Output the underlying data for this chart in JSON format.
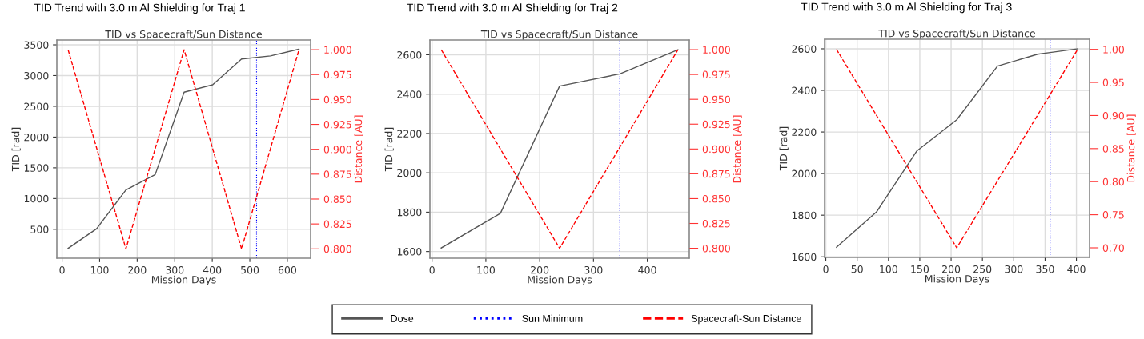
{
  "chart_data": [
    {
      "type": "line",
      "title": "TID Trend with 3.0 m Al Shielding for Traj 1",
      "subtitle": "TID vs Spacecraft/Sun Distance",
      "xlabel": "Mission Days",
      "ylabel": "TID [rad]",
      "y2label": "Distance [AU]",
      "series": [
        {
          "name": "Dose",
          "color": "#555555",
          "line_style": "solid",
          "x": [
            16,
            92,
            170,
            248,
            325,
            401,
            478,
            555,
            631
          ],
          "values": [
            190,
            510,
            1140,
            1390,
            2730,
            2850,
            3270,
            3320,
            3430
          ]
        },
        {
          "name": "Spacecraft-Sun Distance",
          "color": "#ff0000",
          "line_style": "dashed",
          "axis": "y2",
          "x": [
            16,
            170,
            325,
            478,
            631
          ],
          "values": [
            1.0,
            0.8,
            1.0,
            0.8,
            1.0
          ]
        }
      ],
      "ref_lines": [
        {
          "axis": "x",
          "value": 518,
          "label": "Sun Minimum",
          "color": "#0000ff",
          "line_style": "dotted"
        }
      ],
      "xlim": [
        -14,
        662
      ],
      "xticks": [
        0,
        100,
        200,
        300,
        400,
        500,
        600
      ],
      "ylim": [
        30,
        3578
      ],
      "yticks": [
        500,
        1000,
        1500,
        2000,
        2500,
        3000,
        3500
      ],
      "y2lim": [
        0.7906,
        1.0097
      ],
      "y2ticks": [
        {
          "value": 0.8,
          "label": "0.800"
        },
        {
          "value": 0.825,
          "label": "0.825"
        },
        {
          "value": 0.85,
          "label": "0.850"
        },
        {
          "value": 0.875,
          "label": "0.875"
        },
        {
          "value": 0.9,
          "label": "0.900"
        },
        {
          "value": 0.925,
          "label": "0.925"
        },
        {
          "value": 0.95,
          "label": "0.950"
        },
        {
          "value": 0.975,
          "label": "0.975"
        },
        {
          "value": 1.0,
          "label": "1.000"
        }
      ],
      "grid": true,
      "legend": "bottom"
    },
    {
      "type": "line",
      "title": "TID Trend with 3.0 m Al Shielding for Traj 2",
      "subtitle": "TID vs Spacecraft/Sun Distance",
      "xlabel": "Mission Days",
      "ylabel": "TID [rad]",
      "y2label": "Distance [AU]",
      "series": [
        {
          "color": "#555555",
          "line_style": "solid",
          "x": [
            17,
            127,
            237,
            349,
            457
          ],
          "values": [
            1618,
            1794,
            2441,
            2503,
            2626
          ]
        },
        {
          "color": "#ff0000",
          "line_style": "dashed",
          "axis": "y2",
          "x": [
            17,
            237,
            457
          ],
          "values": [
            1.0,
            0.8,
            1.0
          ]
        }
      ],
      "ref_lines": [
        {
          "axis": "x",
          "value": 349,
          "color": "#0000ff",
          "line_style": "dotted"
        }
      ],
      "xlim": [
        -4,
        478
      ],
      "xticks": [
        0,
        100,
        200,
        300,
        400
      ],
      "ylim": [
        1566,
        2675
      ],
      "yticks": [
        1600,
        1800,
        2000,
        2200,
        2400,
        2600
      ],
      "y2lim": [
        0.79,
        1.0097
      ],
      "y2ticks": [
        {
          "value": 0.8,
          "label": "0.800"
        },
        {
          "value": 0.825,
          "label": "0.825"
        },
        {
          "value": 0.85,
          "label": "0.850"
        },
        {
          "value": 0.875,
          "label": "0.875"
        },
        {
          "value": 0.9,
          "label": "0.900"
        },
        {
          "value": 0.925,
          "label": "0.925"
        },
        {
          "value": 0.95,
          "label": "0.950"
        },
        {
          "value": 0.975,
          "label": "0.975"
        },
        {
          "value": 1.0,
          "label": "1.000"
        }
      ],
      "grid": true
    },
    {
      "type": "line",
      "title": "TID Trend with 3.0 m Al Shielding for Traj 3",
      "subtitle": "TID vs Spacecraft/Sun Distance",
      "xlabel": "Mission Days",
      "ylabel": "TID [rad]",
      "y2label": "Distance [AU]",
      "series": [
        {
          "color": "#555555",
          "line_style": "solid",
          "x": [
            17,
            81,
            145,
            209,
            274,
            338,
            358,
            402
          ],
          "values": [
            1646,
            1816,
            2108,
            2259,
            2517,
            2574,
            2582,
            2600
          ]
        },
        {
          "color": "#ff0000",
          "line_style": "dashed",
          "axis": "y2",
          "x": [
            17,
            209,
            402
          ],
          "values": [
            1.0,
            0.7,
            1.0
          ]
        }
      ],
      "ref_lines": [
        {
          "axis": "x",
          "value": 358,
          "color": "#0000ff",
          "line_style": "dotted"
        }
      ],
      "xlim": [
        -2,
        421
      ],
      "xticks": [
        0,
        50,
        100,
        150,
        200,
        250,
        300,
        350,
        400
      ],
      "ylim": [
        1597,
        2646
      ],
      "yticks": [
        1600,
        1800,
        2000,
        2200,
        2400,
        2600
      ],
      "y2lim": [
        0.6855,
        1.0153
      ],
      "y2ticks": [
        {
          "value": 0.7,
          "label": "0.70"
        },
        {
          "value": 0.75,
          "label": "0.75"
        },
        {
          "value": 0.8,
          "label": "0.80"
        },
        {
          "value": 0.85,
          "label": "0.85"
        },
        {
          "value": 0.9,
          "label": "0.90"
        },
        {
          "value": 0.95,
          "label": "0.95"
        },
        {
          "value": 1.0,
          "label": "1.00"
        }
      ],
      "grid": true
    }
  ]
}
